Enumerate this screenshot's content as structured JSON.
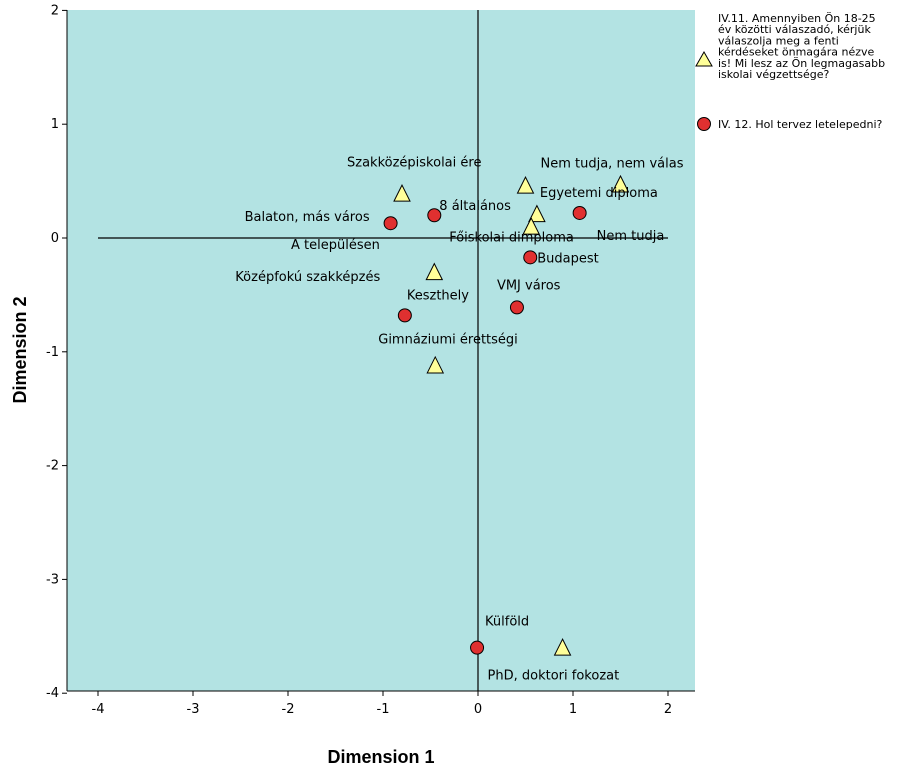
{
  "chart_data": {
    "type": "scatter",
    "title": "",
    "xlabel": "Dimension 1",
    "ylabel": "Dimension 2",
    "xlim": [
      -4.3,
      2.3
    ],
    "ylim": [
      -4,
      2
    ],
    "xticks": [
      -4,
      -3,
      -2,
      -1,
      0,
      1,
      2
    ],
    "yticks": [
      -4,
      -3,
      -2,
      -1,
      0,
      1,
      2
    ],
    "background": "#b3e3e3",
    "legend_position": "right",
    "series": [
      {
        "name": "IV.11. Amennyiben Ön 18-25 év közötti válaszadó, kérjük válaszolja meg a fenti kérdéseket önmagára nézve is! Mi lesz az Ön legmagasabb iskolai végzettsége?",
        "legend_lines": [
          "IV.11. Amennyiben Ön 18-25",
          "év közötti válaszadó, kérjük",
          "válaszolja meg a fenti",
          "kérdéseket önmagára nézve",
          "is! Mi lesz az Ön legmagasabb",
          "iskolai végzettsége?"
        ],
        "marker": "triangle",
        "color": "#ffff99",
        "points": [
          {
            "label": "Szakközépiskolai ére",
            "x": -0.8,
            "y": 0.39
          },
          {
            "label": "Nem tudja, nem válas",
            "x": 1.5,
            "y": 0.47
          },
          {
            "label": "",
            "x": 0.5,
            "y": 0.46
          },
          {
            "label": "Egyetemi diploma",
            "x": 0.62,
            "y": 0.21
          },
          {
            "label": "Főiskolai dimploma",
            "x": 0.56,
            "y": 0.1
          },
          {
            "label": "Középfokú szakképzés",
            "x": -0.46,
            "y": -0.3
          },
          {
            "label": "Gimnáziumi érettségi",
            "x": -0.45,
            "y": -1.12
          },
          {
            "label": "PhD, doktori fokozat",
            "x": 0.89,
            "y": -3.6
          }
        ]
      },
      {
        "name": "IV. 12. Hol tervez letelepedni?",
        "legend_lines": [
          "IV. 12. Hol tervez letelepedni?"
        ],
        "marker": "circle",
        "color": "#e03030",
        "points": [
          {
            "label": "Balaton, más város",
            "x": -0.92,
            "y": 0.13
          },
          {
            "label": "8 általános",
            "x": -0.46,
            "y": 0.2
          },
          {
            "label": "Nem tudja",
            "x": 1.07,
            "y": 0.22
          },
          {
            "label": "A településen",
            "x": 0.0,
            "y": 0.0
          },
          {
            "label": "Budapest",
            "x": 0.55,
            "y": -0.17
          },
          {
            "label": "VMJ város",
            "x": 0.41,
            "y": -0.61
          },
          {
            "label": "Keszthely",
            "x": -0.77,
            "y": -0.68
          },
          {
            "label": "Külföld",
            "x": -0.01,
            "y": -3.6
          }
        ]
      }
    ]
  }
}
